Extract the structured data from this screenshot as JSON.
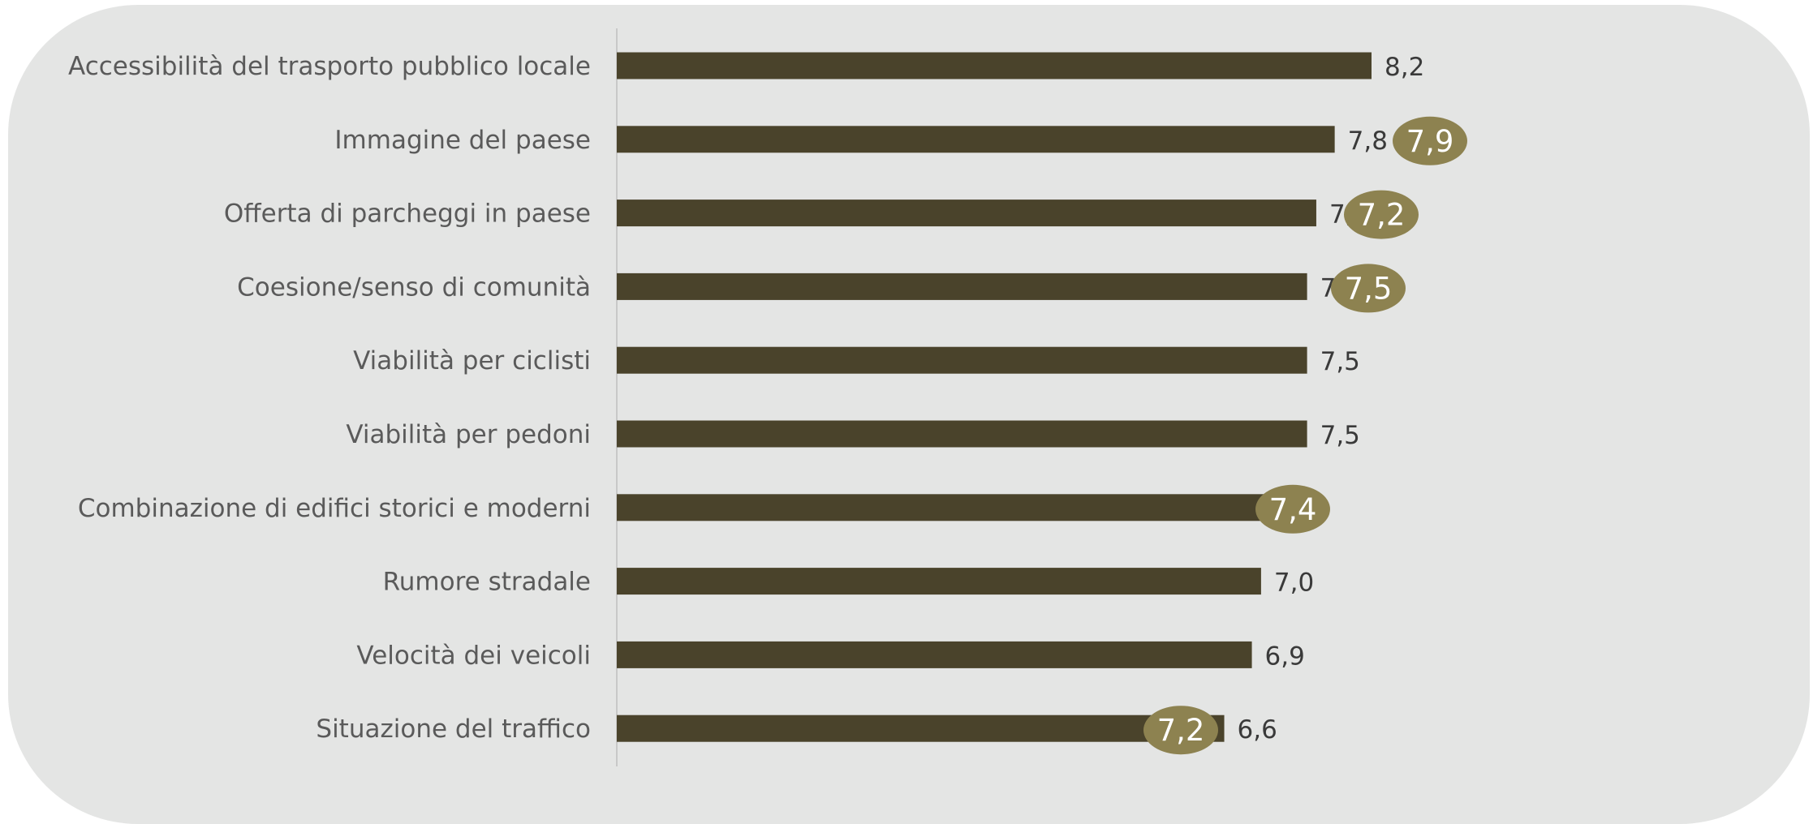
{
  "chart_data": {
    "type": "bar",
    "orientation": "horizontal",
    "categories": [
      "Accessibilità del trasporto pubblico locale",
      "Immagine del paese",
      "Offerta di parcheggi in paese",
      "Coesione/senso di comunità",
      "Viabilità per ciclisti",
      "Viabilità per pedoni",
      "Combinazione di edifici storici e moderni",
      "Rumore stradale",
      "Velocità dei veicoli",
      "Situazione del traffico"
    ],
    "values": [
      8.2,
      7.8,
      7.6,
      7.5,
      7.5,
      7.5,
      7.1,
      7.0,
      6.9,
      6.6
    ],
    "value_labels": [
      "8,2",
      "7,8",
      "7,6",
      "7,5",
      "7,5",
      "7,5",
      "7,1",
      "7,0",
      "6,9",
      "6,6"
    ],
    "comparison_values": [
      null,
      7.9,
      7.2,
      7.5,
      null,
      null,
      7.4,
      null,
      null,
      7.2
    ],
    "comparison_labels": [
      null,
      "7,9",
      "7,2",
      "7,5",
      null,
      null,
      "7,4",
      null,
      null,
      "7,2"
    ],
    "title": "",
    "xlabel": "",
    "ylabel": "",
    "grid": false,
    "legend": "none",
    "colors": {
      "background": "#e4e5e4",
      "bar": "#4a432b",
      "comparison_bubble": "#8d8250",
      "axis_line": "#c8c8c8"
    }
  }
}
